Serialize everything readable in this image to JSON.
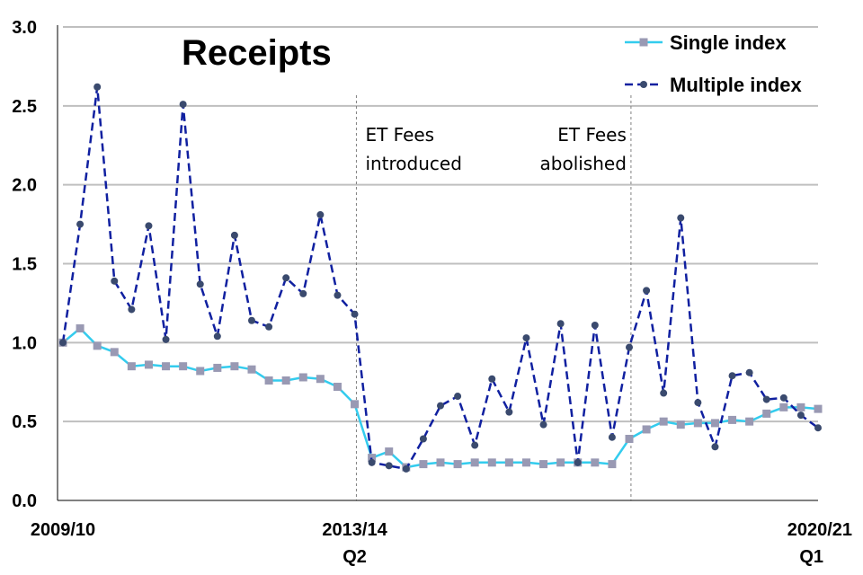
{
  "chart_data": {
    "type": "line",
    "title": "Receipts",
    "xlabel": "",
    "ylabel": "",
    "ylim": [
      0,
      3
    ],
    "yticks": [
      "0.0",
      "0.5",
      "1.0",
      "1.5",
      "2.0",
      "2.5",
      "3.0"
    ],
    "x_tick_labels": [
      {
        "index": 0,
        "lines": [
          "2009/10"
        ]
      },
      {
        "index": 17,
        "lines": [
          "2013/14",
          "Q2"
        ]
      },
      {
        "index": 44,
        "lines": [
          "2020/21",
          "Q1"
        ]
      }
    ],
    "grid": "horizontal",
    "legend_position": "top-right",
    "annotations": [
      {
        "index": 17.1,
        "lines": [
          "ET Fees",
          "introduced"
        ],
        "align": "start"
      },
      {
        "index": 33.1,
        "lines": [
          "ET Fees",
          "abolished"
        ],
        "align": "end"
      }
    ],
    "series": [
      {
        "name": "Single index",
        "color": "#33ccee",
        "marker_color": "#9999b3",
        "marker": "square",
        "dash": "solid",
        "values": [
          1.0,
          1.09,
          0.98,
          0.94,
          0.85,
          0.86,
          0.85,
          0.85,
          0.82,
          0.84,
          0.85,
          0.83,
          0.76,
          0.76,
          0.78,
          0.77,
          0.72,
          0.61,
          0.27,
          0.31,
          0.21,
          0.23,
          0.24,
          0.23,
          0.24,
          0.24,
          0.24,
          0.24,
          0.23,
          0.24,
          0.24,
          0.24,
          0.23,
          0.39,
          0.45,
          0.5,
          0.48,
          0.49,
          0.49,
          0.51,
          0.5,
          0.55,
          0.59,
          0.59,
          0.58
        ]
      },
      {
        "name": "Multiple index",
        "color": "#1020a0",
        "marker_color": "#3a4a6e",
        "marker": "circle",
        "dash": "dashed",
        "values": [
          1.0,
          1.75,
          2.62,
          1.39,
          1.21,
          1.74,
          1.02,
          2.51,
          1.37,
          1.04,
          1.68,
          1.14,
          1.1,
          1.41,
          1.31,
          1.81,
          1.3,
          1.18,
          0.24,
          0.22,
          0.2,
          0.39,
          0.6,
          0.66,
          0.35,
          0.77,
          0.56,
          1.03,
          0.48,
          1.12,
          0.24,
          1.11,
          0.4,
          0.97,
          1.33,
          0.68,
          1.79,
          0.62,
          0.34,
          0.79,
          0.81,
          0.64,
          0.65,
          0.54,
          0.46
        ]
      }
    ]
  }
}
